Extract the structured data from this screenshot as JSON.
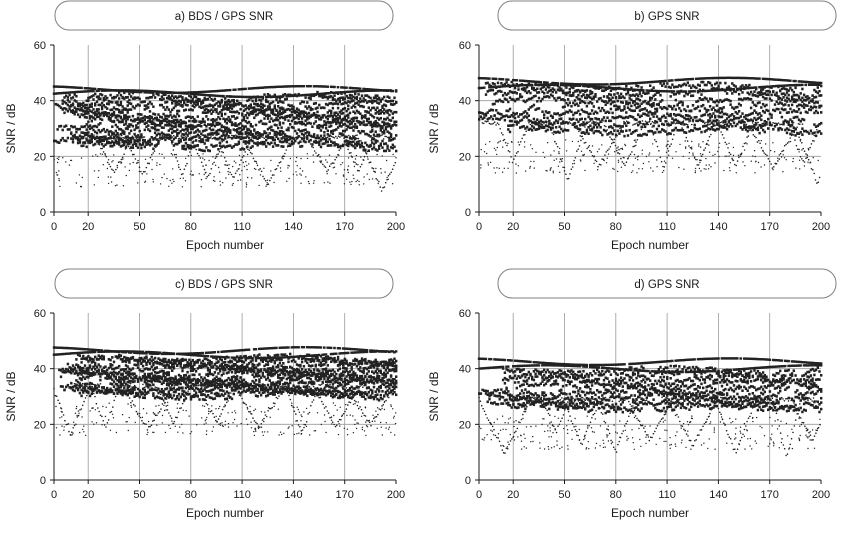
{
  "chart_data": [
    {
      "type": "scatter",
      "panel_letter": "a)",
      "title": "BDS / GPS  SNR",
      "xlabel": "Epoch number",
      "ylabel": "SNR / dB",
      "xlim": [
        0,
        200
      ],
      "ylim": [
        0,
        60
      ],
      "xticks": [
        0,
        20,
        50,
        80,
        110,
        140,
        170,
        200
      ],
      "yticks": [
        0,
        20,
        40,
        60
      ],
      "grid": true,
      "band": [
        23,
        42
      ],
      "upper_tracks": [
        42.5,
        44.0
      ],
      "dip_epochs": [
        35,
        52,
        75,
        90,
        105,
        125,
        160,
        178,
        192
      ],
      "dip_depth_min": 5,
      "upper_line_count": 13
    },
    {
      "type": "scatter",
      "panel_letter": "b)",
      "title": "GPS  SNR",
      "xlabel": "Epoch number",
      "ylabel": "SNR / dB",
      "xlim": [
        0,
        200
      ],
      "ylim": [
        0,
        60
      ],
      "xticks": [
        0,
        20,
        50,
        80,
        110,
        140,
        170,
        200
      ],
      "yticks": [
        0,
        20,
        40,
        60
      ],
      "grid": true,
      "band": [
        28,
        46
      ],
      "upper_tracks": [
        44.5,
        47.0
      ],
      "dip_epochs": [
        20,
        52,
        70,
        85,
        108,
        128,
        150,
        172,
        190,
        198
      ],
      "dip_depth_min": 9,
      "upper_line_count": 8
    },
    {
      "type": "scatter",
      "panel_letter": "c)",
      "title": "BDS / GPS  SNR",
      "xlabel": "Epoch number",
      "ylabel": "SNR / dB",
      "xlim": [
        0,
        200
      ],
      "ylim": [
        0,
        60
      ],
      "xticks": [
        0,
        20,
        50,
        80,
        110,
        140,
        170,
        200
      ],
      "yticks": [
        0,
        20,
        40,
        60
      ],
      "grid": true,
      "band": [
        30,
        44
      ],
      "upper_tracks": [
        45.0,
        46.5
      ],
      "dip_epochs": [
        10,
        30,
        55,
        70,
        95,
        120,
        145,
        165,
        185
      ],
      "dip_depth_min": 15,
      "upper_line_count": 14
    },
    {
      "type": "scatter",
      "panel_letter": "d)",
      "title": "GPS  SNR",
      "xlabel": "Epoch number",
      "ylabel": "SNR / dB",
      "xlim": [
        0,
        200
      ],
      "ylim": [
        0,
        60
      ],
      "xticks": [
        0,
        20,
        50,
        80,
        110,
        140,
        170,
        200
      ],
      "yticks": [
        0,
        20,
        40,
        60
      ],
      "grid": true,
      "band": [
        25,
        40
      ],
      "upper_tracks": [
        40.0,
        42.5
      ],
      "dip_epochs": [
        15,
        45,
        60,
        80,
        100,
        125,
        150,
        180,
        195
      ],
      "dip_depth_min": 8,
      "upper_line_count": 9
    }
  ]
}
